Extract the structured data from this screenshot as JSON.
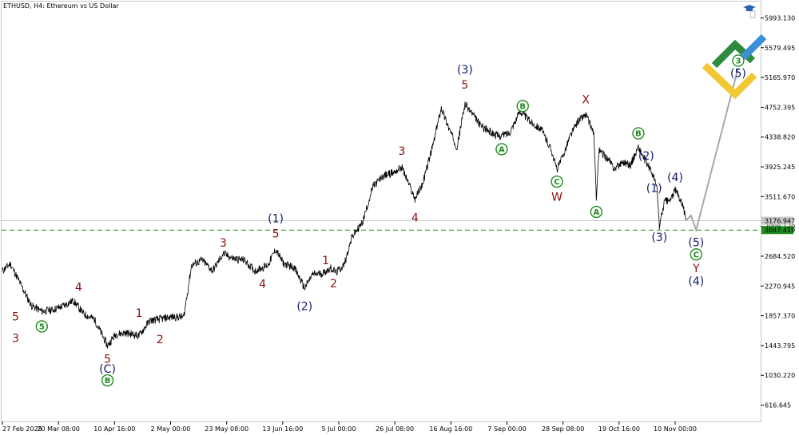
{
  "chart_title": "ETHUSD, H4:  Ethereum vs US Dollar",
  "colors": {
    "price": "#000000",
    "projection": "#a8a8a8",
    "support": "#1e8c1e",
    "brown": "#8b1010",
    "navy": "#101a6b",
    "green": "#1e8c1e",
    "current_label_bg": "#c8c8c8",
    "support_label_bg": "#1e8c1e"
  },
  "icons": {
    "top_right": [
      "education-cap-icon",
      "tick-marker-icon",
      "scroll-icon"
    ],
    "logo": "brand-logo-icon"
  },
  "chart_data": {
    "type": "line",
    "symbol": "ETHUSD",
    "timeframe": "H4",
    "y_ticks": [
      "5993.130",
      "5579.495",
      "5165.970",
      "4752.395",
      "4338.820",
      "3925.245",
      "3511.670",
      "3098.120",
      "2684.520",
      "2270.945",
      "1857.370",
      "1443.795",
      "1030.220",
      "616.645"
    ],
    "ylim": [
      390,
      6220
    ],
    "x_ticks": [
      "27 Feb 2025",
      "20 Mar 08:00",
      "10 Apr 16:00",
      "2 May 00:00",
      "23 May 08:00",
      "13 Jun 16:00",
      "5 Jul 00:00",
      "26 Jul 08:00",
      "16 Aug 16:00",
      "7 Sep 00:00",
      "28 Sep 08:00",
      "19 Oct 16:00",
      "10 Nov 00:00"
    ],
    "current_price_label": "3176.947",
    "support_label": "3047.419",
    "current_price": 3176.947,
    "support_level": 3047.419,
    "price_path": [
      [
        "27 Feb 2025",
        2480
      ],
      [
        "2 Mar",
        2580
      ],
      [
        "6 Mar",
        2290
      ],
      [
        "10 Mar",
        2000
      ],
      [
        "14 Mar",
        1920
      ],
      [
        "18 Mar",
        1940
      ],
      [
        "22 Mar",
        1990
      ],
      [
        "26 Mar",
        2070
      ],
      [
        "30 Mar",
        1880
      ],
      [
        "3 Apr",
        1810
      ],
      [
        "8 Apr",
        1440
      ],
      [
        "11 Apr",
        1600
      ],
      [
        "15 Apr",
        1620
      ],
      [
        "20 Apr",
        1580
      ],
      [
        "24 Apr",
        1790
      ],
      [
        "28 Apr",
        1810
      ],
      [
        "2 May",
        1840
      ],
      [
        "7 May",
        1840
      ],
      [
        "10 May",
        2560
      ],
      [
        "14 May",
        2630
      ],
      [
        "18 May",
        2480
      ],
      [
        "22 May",
        2720
      ],
      [
        "26 May",
        2650
      ],
      [
        "30 May",
        2630
      ],
      [
        "3 Jun",
        2480
      ],
      [
        "8 Jun",
        2560
      ],
      [
        "11 Jun",
        2780
      ],
      [
        "14 Jun",
        2580
      ],
      [
        "18 Jun",
        2530
      ],
      [
        "22 Jun",
        2240
      ],
      [
        "25 Jun",
        2430
      ],
      [
        "29 Jun",
        2450
      ],
      [
        "2 Jul",
        2520
      ],
      [
        "4 Jul",
        2460
      ],
      [
        "7 Jul",
        2560
      ],
      [
        "10 Jul",
        2950
      ],
      [
        "14 Jul",
        3150
      ],
      [
        "18 Jul",
        3650
      ],
      [
        "22 Jul",
        3800
      ],
      [
        "26 Jul",
        3850
      ],
      [
        "29 Jul",
        3920
      ],
      [
        "3 Aug",
        3480
      ],
      [
        "6 Aug",
        3700
      ],
      [
        "10 Aug",
        4250
      ],
      [
        "13 Aug",
        4750
      ],
      [
        "16 Aug",
        4450
      ],
      [
        "19 Aug",
        4200
      ],
      [
        "22 Aug",
        4800
      ],
      [
        "25 Aug",
        4650
      ],
      [
        "28 Aug",
        4500
      ],
      [
        "1 Sep",
        4400
      ],
      [
        "4 Sep",
        4350
      ],
      [
        "8 Sep",
        4400
      ],
      [
        "12 Sep",
        4700
      ],
      [
        "16 Sep",
        4550
      ],
      [
        "20 Sep",
        4450
      ],
      [
        "24 Sep",
        4150
      ],
      [
        "26 Sep",
        3890
      ],
      [
        "28 Sep",
        4050
      ],
      [
        "1 Oct",
        4350
      ],
      [
        "4 Oct",
        4560
      ],
      [
        "7 Oct",
        4650
      ],
      [
        "10 Oct",
        4400
      ],
      [
        "11 Oct",
        3500
      ],
      [
        "12 Oct",
        4150
      ],
      [
        "15 Oct",
        4050
      ],
      [
        "18 Oct",
        3900
      ],
      [
        "21 Oct",
        4000
      ],
      [
        "24 Oct",
        3950
      ],
      [
        "27 Oct",
        4200
      ],
      [
        "29 Oct",
        4050
      ],
      [
        "1 Nov",
        3860
      ],
      [
        "3 Nov",
        3650
      ],
      [
        "4 Nov",
        3100
      ],
      [
        "6 Nov",
        3450
      ],
      [
        "8 Nov",
        3450
      ],
      [
        "10 Nov",
        3600
      ],
      [
        "11 Nov",
        3550
      ],
      [
        "13 Nov",
        3400
      ],
      [
        "14 Nov",
        3180
      ]
    ],
    "projection_path": [
      [
        "14 Nov",
        3176.947
      ],
      [
        "16 Nov",
        3250
      ],
      [
        "18 Nov",
        3050
      ],
      [
        "4 Dec",
        5300
      ]
    ],
    "wave_labels": [
      {
        "text": "5",
        "color": "brown",
        "circled": false,
        "x": "4 Mar",
        "y": 1850
      },
      {
        "text": "3",
        "color": "brown",
        "circled": false,
        "x": "4 Mar",
        "y": 1550
      },
      {
        "text": "4",
        "color": "brown",
        "circled": false,
        "x": "28 Mar",
        "y": 2260
      },
      {
        "text": "1",
        "color": "brown",
        "circled": false,
        "x": "20 Apr",
        "y": 1900
      },
      {
        "text": "2",
        "color": "brown",
        "circled": false,
        "x": "28 Apr",
        "y": 1530
      },
      {
        "text": "5",
        "color": "brown",
        "circled": false,
        "x": "8 Apr",
        "y": 1260
      },
      {
        "text": "(C)",
        "color": "navy",
        "circled": false,
        "x": "8 Apr",
        "y": 1120
      },
      {
        "text": "B",
        "color": "green",
        "circled": true,
        "x": "8 Apr",
        "y": 960
      },
      {
        "text": "3",
        "color": "brown",
        "circled": false,
        "x": "22 May",
        "y": 2870
      },
      {
        "text": "4",
        "color": "brown",
        "circled": false,
        "x": "6 Jun",
        "y": 2300
      },
      {
        "text": "5",
        "color": "brown",
        "circled": false,
        "x": "11 Jun",
        "y": 3000
      },
      {
        "text": "(1)",
        "color": "navy",
        "circled": false,
        "x": "11 Jun",
        "y": 3210
      },
      {
        "text": "1",
        "color": "brown",
        "circled": false,
        "x": "30 Jun",
        "y": 2630
      },
      {
        "text": "2",
        "color": "brown",
        "circled": false,
        "x": "3 Jul",
        "y": 2310
      },
      {
        "text": "(2)",
        "color": "navy",
        "circled": false,
        "x": "22 Jun",
        "y": 1990
      },
      {
        "text": "3",
        "color": "brown",
        "circled": false,
        "x": "29 Jul",
        "y": 4150
      },
      {
        "text": "4",
        "color": "brown",
        "circled": false,
        "x": "3 Aug",
        "y": 3220
      },
      {
        "text": "5",
        "color": "brown",
        "circled": false,
        "x": "22 Aug",
        "y": 5070
      },
      {
        "text": "(3)",
        "color": "navy",
        "circled": false,
        "x": "22 Aug",
        "y": 5280
      },
      {
        "text": "A",
        "color": "green",
        "circled": true,
        "x": "5 Sep",
        "y": 4170
      },
      {
        "text": "B",
        "color": "green",
        "circled": true,
        "x": "13 Sep",
        "y": 4770
      },
      {
        "text": "C",
        "color": "green",
        "circled": true,
        "x": "26 Sep",
        "y": 3720
      },
      {
        "text": "W",
        "color": "brown",
        "circled": false,
        "x": "26 Sep",
        "y": 3510
      },
      {
        "text": "X",
        "color": "brown",
        "circled": false,
        "x": "7 Oct",
        "y": 4860
      },
      {
        "text": "A",
        "color": "green",
        "circled": true,
        "x": "11 Oct",
        "y": 3300
      },
      {
        "text": "B",
        "color": "green",
        "circled": true,
        "x": "27 Oct",
        "y": 4390
      },
      {
        "text": "(2)",
        "color": "navy",
        "circled": false,
        "x": "30 Oct",
        "y": 4080
      },
      {
        "text": "(1)",
        "color": "navy",
        "circled": false,
        "x": "2 Nov",
        "y": 3630
      },
      {
        "text": "(4)",
        "color": "navy",
        "circled": false,
        "x": "10 Nov",
        "y": 3780
      },
      {
        "text": "(3)",
        "color": "navy",
        "circled": false,
        "x": "4 Nov",
        "y": 2950
      },
      {
        "text": "(5)",
        "color": "navy",
        "circled": false,
        "x": "18 Nov",
        "y": 2880
      },
      {
        "text": "C",
        "color": "green",
        "circled": true,
        "x": "18 Nov",
        "y": 2710
      },
      {
        "text": "Y",
        "color": "brown",
        "circled": false,
        "x": "18 Nov",
        "y": 2520
      },
      {
        "text": "(4)",
        "color": "navy",
        "circled": false,
        "x": "18 Nov",
        "y": 2340
      },
      {
        "text": "(5)",
        "color": "navy",
        "circled": false,
        "x": "4 Dec",
        "y": 5230
      },
      {
        "text": "5",
        "color": "green",
        "circled": true,
        "x": "14 Mar",
        "y": 1710
      },
      {
        "text": "3",
        "color": "green",
        "circled": true,
        "x": "4 Dec",
        "y": 5400
      }
    ]
  }
}
